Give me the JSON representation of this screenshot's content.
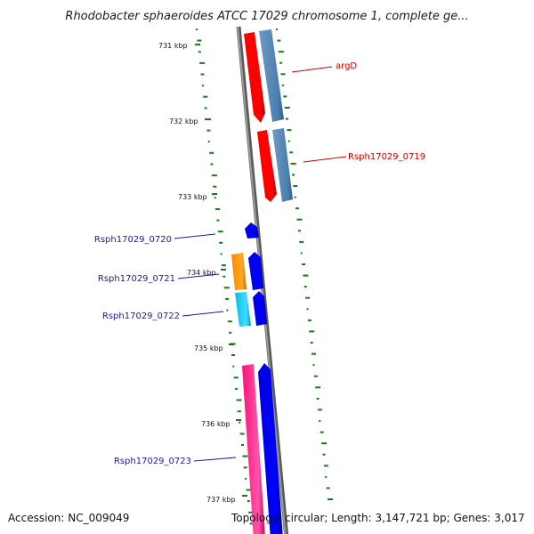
{
  "title": "Rhodobacter sphaeroides ATCC 17029 chromosome 1, complete ge...",
  "tick_labels": [
    "731 kbp",
    "732 kbp",
    "733 kbp",
    "734 kbp",
    "735 kbp",
    "736 kbp",
    "737 kbp"
  ],
  "gene_labels": [
    {
      "text": "argD",
      "strand": "forward"
    },
    {
      "text": "Rsph17029_0719",
      "strand": "forward"
    },
    {
      "text": "Rsph17029_0720",
      "strand": "reverse"
    },
    {
      "text": "Rsph17029_0721",
      "strand": "reverse"
    },
    {
      "text": "Rsph17029_0722",
      "strand": "reverse"
    },
    {
      "text": "Rsph17029_0723",
      "strand": "reverse"
    }
  ],
  "footer": {
    "accession": "Accession: NC_009049",
    "summary": "Topology: circular; Length: 3,147,721 bp; Genes: 3,017"
  },
  "colors": {
    "forward_label": "#cc0000",
    "reverse_label": "#1a1aaa",
    "backbone": "#808080",
    "gc_dots": "#1a7a1a",
    "argD": "#ff0000",
    "steelblue": "#4a7fb0",
    "blue": "#0000ee",
    "orange": "#ff9900",
    "cyan": "#22ccee",
    "pink": "#ff2288"
  }
}
